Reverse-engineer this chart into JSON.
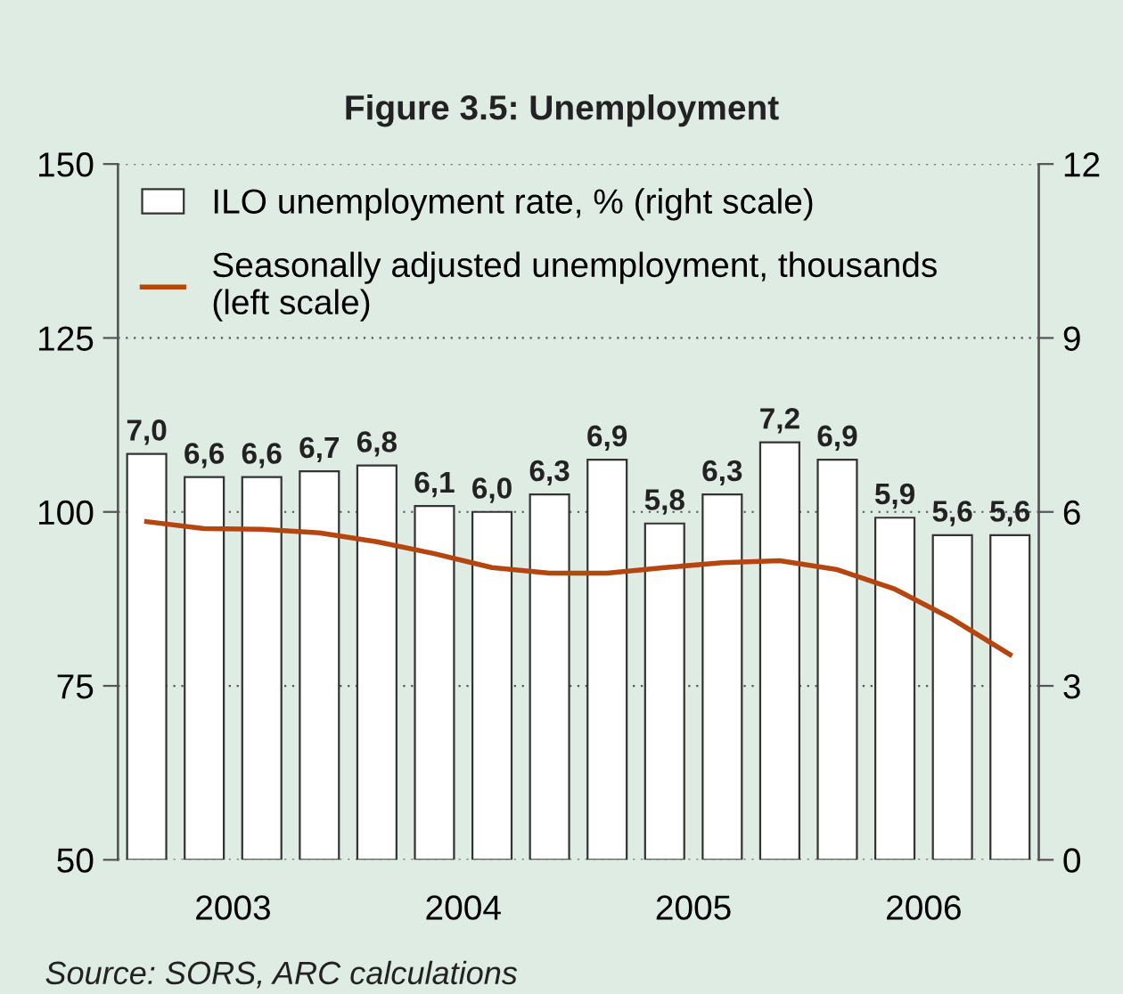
{
  "chart_data": {
    "type": "bar",
    "title": "Figure 3.5: Unemployment",
    "x": [
      2003.125,
      2003.375,
      2003.625,
      2003.875,
      2004.125,
      2004.375,
      2004.625,
      2004.875,
      2005.125,
      2005.375,
      2005.625,
      2005.875,
      2006.125,
      2006.375,
      2006.625,
      2006.875
    ],
    "series": [
      {
        "name": "ILO unemployment rate, % (right scale)",
        "axis": "y2",
        "color": "#ffffff",
        "values": [
          7.0,
          6.6,
          6.6,
          6.7,
          6.8,
          6.1,
          6.0,
          6.3,
          6.9,
          5.8,
          6.3,
          7.2,
          6.9,
          5.9,
          5.6,
          5.6
        ],
        "value_labels": [
          "7,0",
          "6,6",
          "6,6",
          "6,7",
          "6,8",
          "6,1",
          "6,0",
          "6,3",
          "6,9",
          "5,8",
          "6,3",
          "7,2",
          "6,9",
          "5,9",
          "5,6",
          "5,6"
        ]
      },
      {
        "name": "Seasonally adjusted unemployment, thousands\n(left scale)",
        "type": "line",
        "color": "#b5460f",
        "values": [
          98.6,
          97.6,
          97.5,
          97.0,
          95.7,
          94.0,
          92.0,
          91.2,
          91.2,
          92.0,
          92.7,
          93.0,
          91.7,
          88.9,
          84.6,
          79.5
        ]
      }
    ],
    "xlim": [
      2003,
      2007
    ],
    "xticks": [
      {
        "value": 2003.5,
        "label": "2003"
      },
      {
        "value": 2004.5,
        "label": "2004"
      },
      {
        "value": 2005.5,
        "label": "2005"
      },
      {
        "value": 2006.5,
        "label": "2006"
      }
    ],
    "ylim": [
      50,
      150
    ],
    "yticks": [
      50,
      75,
      100,
      125,
      150
    ],
    "y2lim": [
      0,
      12
    ],
    "y2ticks": [
      0,
      3,
      6,
      9,
      12
    ],
    "grid": "y",
    "legend": "top left",
    "marker": "none",
    "line_style": "solid",
    "annotations": [
      "Source: SORS, ARC calculations"
    ]
  }
}
